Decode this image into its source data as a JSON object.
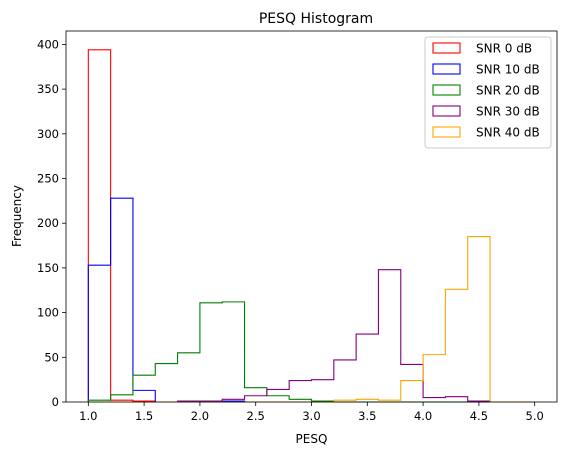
{
  "chart_data": {
    "type": "histogram",
    "title": "PESQ Histogram",
    "xlabel": "PESQ",
    "ylabel": "Frequency",
    "xlim": [
      0.8,
      5.2
    ],
    "ylim": [
      0,
      415
    ],
    "xticks": [
      1.0,
      1.5,
      2.0,
      2.5,
      3.0,
      3.5,
      4.0,
      4.5,
      5.0
    ],
    "xtick_labels": [
      "1.0",
      "1.5",
      "2.0",
      "2.5",
      "3.0",
      "3.5",
      "4.0",
      "4.5",
      "5.0"
    ],
    "yticks": [
      0,
      50,
      100,
      150,
      200,
      250,
      300,
      350,
      400
    ],
    "ytick_labels": [
      "0",
      "50",
      "100",
      "150",
      "200",
      "250",
      "300",
      "350",
      "400"
    ],
    "bin_edges": [
      1.0,
      1.2,
      1.4,
      1.6,
      1.8,
      2.0,
      2.2,
      2.4,
      2.6,
      2.8,
      3.0,
      3.2,
      3.4,
      3.6,
      3.8,
      4.0,
      4.2,
      4.4,
      4.6,
      4.8,
      5.0
    ],
    "legend_position": "top-right",
    "series": [
      {
        "name": "SNR 0 dB",
        "color": "#ff0000",
        "values": [
          394,
          2,
          1,
          0,
          0,
          0,
          0,
          0,
          0,
          0,
          0,
          0,
          0,
          0,
          0,
          0,
          0,
          0,
          0,
          0
        ]
      },
      {
        "name": "SNR 10 dB",
        "color": "#0000ff",
        "values": [
          153,
          228,
          13,
          0,
          0,
          0,
          1,
          0,
          0,
          0,
          0,
          0,
          0,
          0,
          0,
          0,
          0,
          0,
          0,
          0
        ]
      },
      {
        "name": "SNR 20 dB",
        "color": "#008000",
        "values": [
          2,
          8,
          30,
          43,
          55,
          111,
          112,
          16,
          7,
          3,
          1,
          0,
          0,
          0,
          0,
          0,
          0,
          0,
          0,
          0
        ]
      },
      {
        "name": "SNR 30 dB",
        "color": "#800080",
        "values": [
          0,
          0,
          0,
          0,
          1,
          1,
          3,
          7,
          14,
          24,
          25,
          47,
          76,
          148,
          42,
          5,
          6,
          1,
          0,
          0
        ]
      },
      {
        "name": "SNR 40 dB",
        "color": "#ffa500",
        "values": [
          0,
          0,
          0,
          0,
          0,
          0,
          0,
          0,
          0,
          0,
          0,
          2,
          3,
          2,
          24,
          53,
          126,
          185,
          0,
          0
        ]
      }
    ]
  }
}
